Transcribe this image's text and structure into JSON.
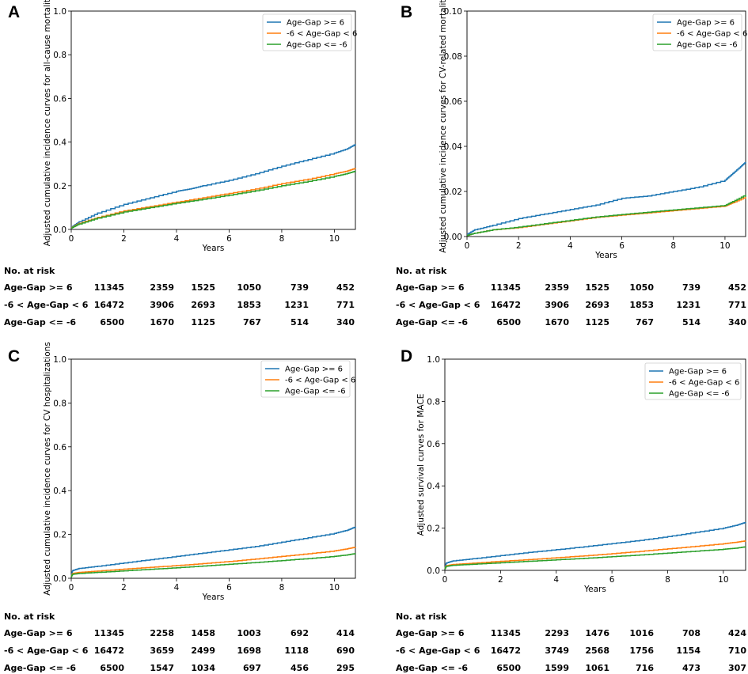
{
  "colors": {
    "series1": "#1f77b4",
    "series2": "#ff7f0e",
    "series3": "#2ca02c"
  },
  "risk_table_title": "No. at risk",
  "chart_data": [
    {
      "panel": "A",
      "type": "line",
      "xlabel": "Years",
      "ylabel": "Adjusted cumulative incidence curves for all-cause mortality",
      "xlim": [
        0,
        10.8
      ],
      "ylim": [
        0,
        1.0
      ],
      "xticks": [
        "0",
        "2",
        "4",
        "6",
        "8",
        "10"
      ],
      "yticks": [
        "0.0",
        "0.2",
        "0.4",
        "0.6",
        "0.8",
        "1.0"
      ],
      "legend_position": "top-right",
      "series": [
        {
          "name": "Age-Gap >= 6",
          "x": [
            0,
            0.3,
            1,
            2,
            3,
            4,
            4.5,
            5,
            6,
            7,
            8,
            9,
            10,
            10.5,
            10.8
          ],
          "y": [
            0.01,
            0.035,
            0.075,
            0.115,
            0.145,
            0.175,
            0.185,
            0.2,
            0.225,
            0.255,
            0.29,
            0.32,
            0.35,
            0.37,
            0.39
          ]
        },
        {
          "name": "-6 < Age-Gap < 6",
          "x": [
            0,
            0.3,
            1,
            2,
            3,
            4,
            5,
            6,
            7,
            8,
            9,
            10,
            10.5,
            10.8
          ],
          "y": [
            0.008,
            0.028,
            0.055,
            0.085,
            0.105,
            0.125,
            0.145,
            0.165,
            0.185,
            0.21,
            0.23,
            0.255,
            0.268,
            0.28
          ]
        },
        {
          "name": "Age-Gap <= -6",
          "x": [
            0,
            0.3,
            1,
            2,
            3,
            4,
            5,
            6,
            7,
            8,
            9,
            10,
            10.5,
            10.8
          ],
          "y": [
            0.007,
            0.025,
            0.052,
            0.08,
            0.1,
            0.12,
            0.138,
            0.157,
            0.177,
            0.2,
            0.22,
            0.243,
            0.256,
            0.267
          ]
        }
      ],
      "risk_table": [
        {
          "label": "Age-Gap >= 6",
          "values": [
            "11345",
            "2359",
            "1525",
            "1050",
            "739",
            "452"
          ]
        },
        {
          "label": "-6 < Age-Gap < 6",
          "values": [
            "16472",
            "3906",
            "2693",
            "1853",
            "1231",
            "771"
          ]
        },
        {
          "label": "Age-Gap <= -6",
          "values": [
            "6500",
            "1670",
            "1125",
            "767",
            "514",
            "340"
          ]
        }
      ]
    },
    {
      "panel": "B",
      "type": "line",
      "xlabel": "Years",
      "ylabel": "Adjusted cumulative incidence curves for CV-related mortality",
      "xlim": [
        0,
        10.8
      ],
      "ylim": [
        0,
        0.1
      ],
      "xticks": [
        "0",
        "2",
        "4",
        "6",
        "8",
        "10"
      ],
      "yticks": [
        "0.00",
        "0.02",
        "0.04",
        "0.06",
        "0.08",
        "0.10"
      ],
      "legend_position": "top-right",
      "series": [
        {
          "name": "Age-Gap >= 6",
          "x": [
            0,
            0.3,
            1,
            2,
            3,
            4,
            5,
            6,
            7,
            8,
            9,
            10,
            10.3,
            10.6,
            10.8
          ],
          "y": [
            0.001,
            0.003,
            0.005,
            0.008,
            0.01,
            0.012,
            0.014,
            0.017,
            0.018,
            0.02,
            0.022,
            0.025,
            0.028,
            0.031,
            0.033
          ]
        },
        {
          "name": "-6 < Age-Gap < 6",
          "x": [
            0,
            0.3,
            1,
            2,
            3,
            4,
            5,
            6,
            7,
            8,
            9,
            10,
            10.3,
            10.8
          ],
          "y": [
            0.0005,
            0.0015,
            0.003,
            0.004,
            0.0055,
            0.007,
            0.0085,
            0.0095,
            0.0105,
            0.0115,
            0.0125,
            0.0135,
            0.015,
            0.0175
          ]
        },
        {
          "name": "Age-Gap <= -6",
          "x": [
            0,
            0.3,
            1,
            2,
            3,
            4,
            5,
            6,
            7,
            8,
            9,
            10,
            10.3,
            10.8
          ],
          "y": [
            0.0005,
            0.0015,
            0.003,
            0.0042,
            0.0057,
            0.0072,
            0.0087,
            0.0098,
            0.0108,
            0.0118,
            0.0128,
            0.0138,
            0.0155,
            0.0185
          ]
        }
      ],
      "risk_table": [
        {
          "label": "Age-Gap >= 6",
          "values": [
            "11345",
            "2359",
            "1525",
            "1050",
            "739",
            "452"
          ]
        },
        {
          "label": "-6 < Age-Gap < 6",
          "values": [
            "16472",
            "3906",
            "2693",
            "1853",
            "1231",
            "771"
          ]
        },
        {
          "label": "Age-Gap <= -6",
          "values": [
            "6500",
            "1670",
            "1125",
            "767",
            "514",
            "340"
          ]
        }
      ]
    },
    {
      "panel": "C",
      "type": "line",
      "xlabel": "Years",
      "ylabel": "Adjusted cumulative incidence curves for CV hospitalizations",
      "xlim": [
        0,
        10.8
      ],
      "ylim": [
        0,
        1.0
      ],
      "xticks": [
        "0",
        "2",
        "4",
        "6",
        "8",
        "10"
      ],
      "yticks": [
        "0.0",
        "0.2",
        "0.4",
        "0.6",
        "0.8",
        "1.0"
      ],
      "legend_position": "top-right",
      "series": [
        {
          "name": "Age-Gap >= 6",
          "x": [
            0,
            0.05,
            0.3,
            1,
            2,
            3,
            4,
            5,
            6,
            7,
            8,
            9,
            10,
            10.5,
            10.8
          ],
          "y": [
            0.01,
            0.035,
            0.045,
            0.055,
            0.07,
            0.085,
            0.1,
            0.115,
            0.13,
            0.145,
            0.165,
            0.185,
            0.205,
            0.22,
            0.235
          ]
        },
        {
          "name": "-6 < Age-Gap < 6",
          "x": [
            0,
            0.05,
            0.3,
            1,
            2,
            3,
            4,
            5,
            6,
            7,
            8,
            9,
            10,
            10.5,
            10.8
          ],
          "y": [
            0.008,
            0.022,
            0.027,
            0.033,
            0.042,
            0.05,
            0.058,
            0.067,
            0.077,
            0.088,
            0.1,
            0.112,
            0.125,
            0.135,
            0.142
          ]
        },
        {
          "name": "Age-Gap <= -6",
          "x": [
            0,
            0.05,
            0.3,
            1,
            2,
            3,
            4,
            5,
            6,
            7,
            8,
            9,
            10,
            10.5,
            10.8
          ],
          "y": [
            0.007,
            0.018,
            0.022,
            0.027,
            0.034,
            0.041,
            0.048,
            0.056,
            0.064,
            0.072,
            0.081,
            0.09,
            0.1,
            0.107,
            0.113
          ]
        }
      ],
      "risk_table": [
        {
          "label": "Age-Gap >= 6",
          "values": [
            "11345",
            "2258",
            "1458",
            "1003",
            "692",
            "414"
          ]
        },
        {
          "label": "-6 < Age-Gap < 6",
          "values": [
            "16472",
            "3659",
            "2499",
            "1698",
            "1118",
            "690"
          ]
        },
        {
          "label": "Age-Gap <= -6",
          "values": [
            "6500",
            "1547",
            "1034",
            "697",
            "456",
            "295"
          ]
        }
      ]
    },
    {
      "panel": "D",
      "type": "line",
      "xlabel": "Years",
      "ylabel": "Adjusted survival curves for MACE",
      "xlim": [
        0,
        10.8
      ],
      "ylim": [
        0,
        1.0
      ],
      "xticks": [
        "0",
        "2",
        "4",
        "6",
        "8",
        "10"
      ],
      "yticks": [
        "0.0",
        "0.2",
        "0.4",
        "0.6",
        "0.8",
        "1.0"
      ],
      "legend_position": "top-right",
      "series": [
        {
          "name": "Age-Gap >= 6",
          "x": [
            0,
            0.05,
            0.3,
            1,
            2,
            3,
            4,
            5,
            6,
            7,
            8,
            9,
            10,
            10.5,
            10.8
          ],
          "y": [
            0.01,
            0.035,
            0.045,
            0.055,
            0.07,
            0.085,
            0.098,
            0.112,
            0.127,
            0.142,
            0.16,
            0.18,
            0.2,
            0.215,
            0.228
          ]
        },
        {
          "name": "-6 < Age-Gap < 6",
          "x": [
            0,
            0.05,
            0.3,
            1,
            2,
            3,
            4,
            5,
            6,
            7,
            8,
            9,
            10,
            10.5,
            10.8
          ],
          "y": [
            0.008,
            0.022,
            0.028,
            0.034,
            0.043,
            0.051,
            0.06,
            0.069,
            0.079,
            0.09,
            0.102,
            0.114,
            0.126,
            0.134,
            0.14
          ]
        },
        {
          "name": "Age-Gap <= -6",
          "x": [
            0,
            0.05,
            0.3,
            1,
            2,
            3,
            4,
            5,
            6,
            7,
            8,
            9,
            10,
            10.5,
            10.8
          ],
          "y": [
            0.007,
            0.019,
            0.024,
            0.029,
            0.036,
            0.043,
            0.05,
            0.057,
            0.065,
            0.073,
            0.082,
            0.091,
            0.1,
            0.106,
            0.112
          ]
        }
      ],
      "risk_table": [
        {
          "label": "Age-Gap >= 6",
          "values": [
            "11345",
            "2293",
            "1476",
            "1016",
            "708",
            "424"
          ]
        },
        {
          "label": "-6 < Age-Gap < 6",
          "values": [
            "16472",
            "3749",
            "2568",
            "1756",
            "1154",
            "710"
          ]
        },
        {
          "label": "Age-Gap <= -6",
          "values": [
            "6500",
            "1599",
            "1061",
            "716",
            "473",
            "307"
          ]
        }
      ]
    }
  ]
}
